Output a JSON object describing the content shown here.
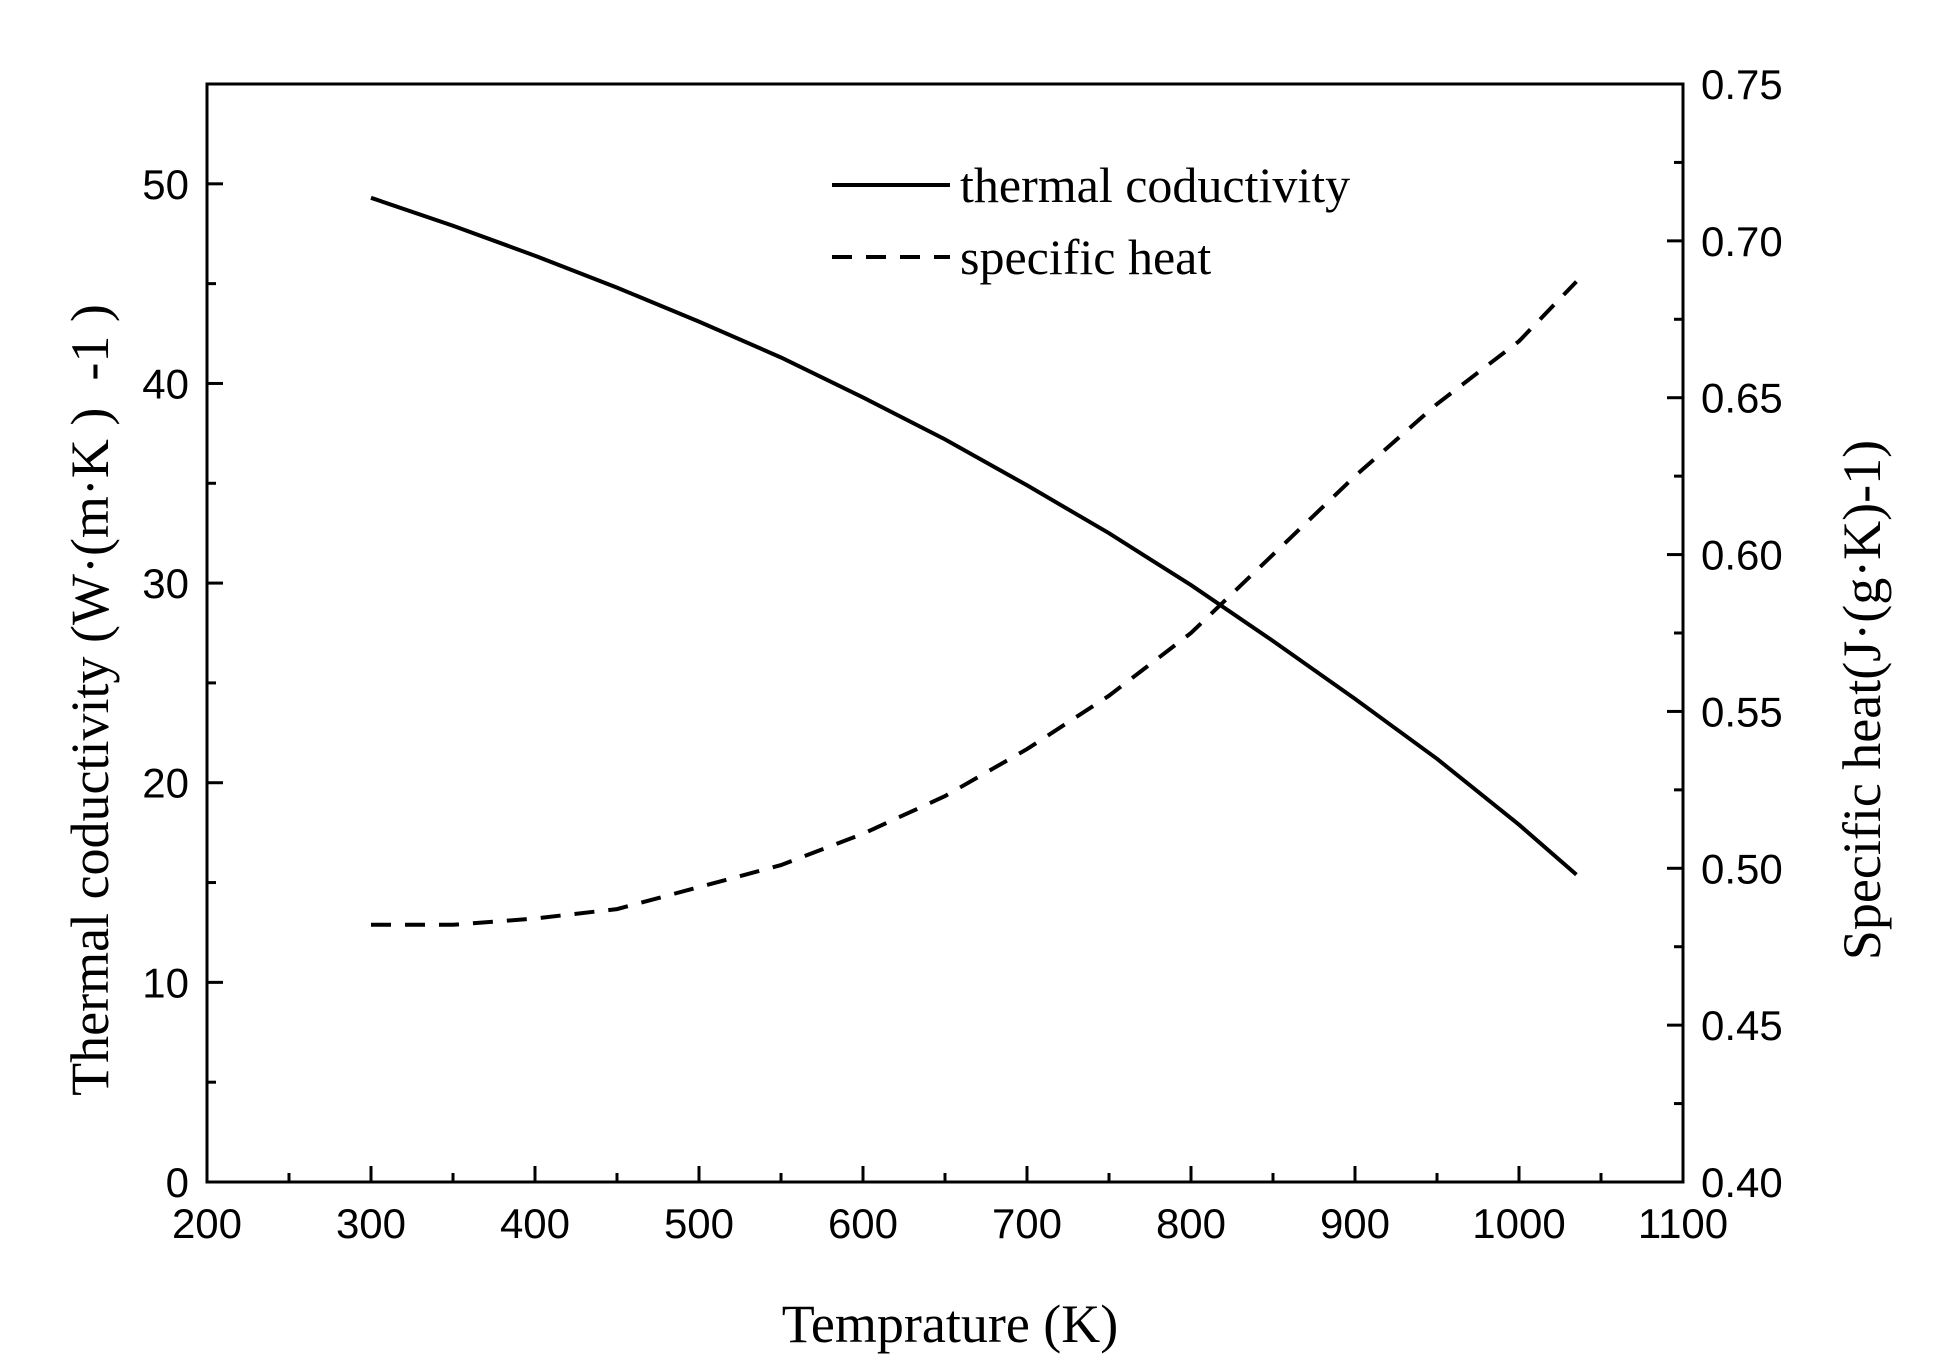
{
  "chart_data": {
    "type": "line",
    "xlabel": "Temprature (K)",
    "ylabel_left": "Thermal coductivity (W·(m·K )  -1 )",
    "ylabel_right": "Specific heat(J·(g·K)-1)",
    "xlim": [
      200,
      1100
    ],
    "ylim_left": [
      0,
      55
    ],
    "ylim_right": [
      0.4,
      0.75
    ],
    "x_major_ticks": [
      200,
      300,
      400,
      500,
      600,
      700,
      800,
      900,
      1000,
      1100
    ],
    "y_left_major_ticks": [
      0,
      10,
      20,
      30,
      40,
      50
    ],
    "y_right_major_ticks": [
      "0.40",
      "0.45",
      "0.50",
      "0.55",
      "0.60",
      "0.65",
      "0.70",
      "0.75"
    ],
    "grid": false,
    "legend_position": "top-center",
    "series": [
      {
        "name": "thermal coductivity",
        "axis": "left",
        "style": "solid",
        "x": [
          300,
          350,
          400,
          450,
          500,
          550,
          600,
          650,
          700,
          750,
          800,
          850,
          900,
          950,
          1000,
          1035
        ],
        "y": [
          49.3,
          47.9,
          46.4,
          44.8,
          43.1,
          41.3,
          39.3,
          37.2,
          34.9,
          32.5,
          29.9,
          27.1,
          24.2,
          21.2,
          17.9,
          15.4
        ]
      },
      {
        "name": "specific heat",
        "axis": "right",
        "style": "dashed",
        "x": [
          300,
          350,
          400,
          450,
          500,
          550,
          600,
          650,
          700,
          750,
          800,
          850,
          900,
          950,
          1000,
          1035
        ],
        "y": [
          0.482,
          0.482,
          0.484,
          0.487,
          0.494,
          0.501,
          0.511,
          0.523,
          0.538,
          0.555,
          0.575,
          0.6,
          0.625,
          0.648,
          0.668,
          0.687
        ]
      }
    ]
  }
}
